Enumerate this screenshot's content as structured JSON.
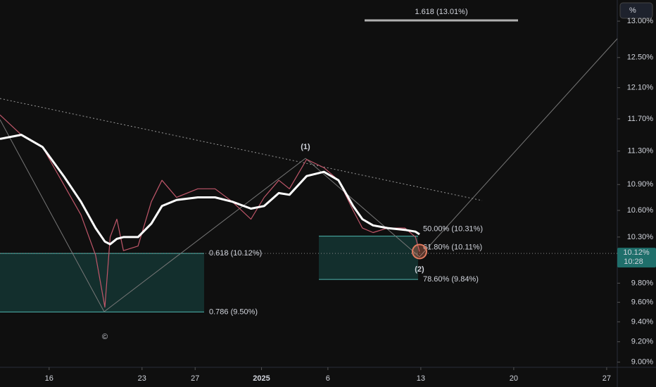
{
  "chart_data": {
    "type": "line",
    "log_scale": true,
    "x": [
      12.3,
      13.9,
      15.5,
      17.1,
      18.4,
      19.5,
      20.2,
      20.6,
      21.1,
      21.6,
      22.7,
      23.7,
      24.5,
      25.6,
      27.2,
      28.5,
      29.8,
      31.2,
      32.2,
      33.3,
      34.1,
      35.4,
      36.7,
      37.8,
      38.9,
      39.6,
      40.4,
      41.5,
      42.8,
      43.6,
      43.9
    ],
    "series": [
      {
        "color": "#c0576a",
        "values": [
          11.75,
          11.5,
          11.35,
          10.9,
          10.55,
          10.1,
          9.55,
          10.3,
          10.5,
          10.15,
          10.2,
          10.7,
          10.95,
          10.75,
          10.85,
          10.85,
          10.7,
          10.5,
          10.75,
          10.95,
          10.85,
          11.2,
          11.1,
          10.95,
          10.6,
          10.4,
          10.35,
          10.4,
          10.4,
          10.3,
          10.14
        ]
      },
      {
        "color": "#ffffff",
        "values": [
          11.45,
          11.5,
          11.35,
          11.0,
          10.7,
          10.4,
          10.25,
          10.22,
          10.28,
          10.3,
          10.3,
          10.45,
          10.65,
          10.72,
          10.75,
          10.75,
          10.7,
          10.62,
          10.65,
          10.8,
          10.78,
          11.0,
          11.05,
          10.95,
          10.65,
          10.5,
          10.43,
          10.4,
          10.38,
          10.36,
          10.33
        ]
      }
    ],
    "xlim": [
      12.3,
      58.8
    ],
    "ylim": [
      8.95,
      13.3
    ],
    "xticks": [
      16,
      23,
      27,
      {
        "value": 32,
        "label": "2025"
      },
      {
        "value": 37,
        "label": "6"
      },
      {
        "value": 44,
        "label": "13"
      },
      {
        "value": 51,
        "label": "20"
      },
      {
        "value": 58,
        "label": "27"
      }
    ],
    "yticks": [
      {
        "value": 13,
        "label": "13.00%"
      },
      {
        "value": 12.5,
        "label": "12.50%"
      },
      {
        "value": 12.1,
        "label": "12.10%"
      },
      {
        "value": 11.7,
        "label": "11.70%"
      },
      {
        "value": 11.3,
        "label": "11.30%"
      },
      {
        "value": 10.9,
        "label": "10.90%"
      },
      {
        "value": 10.6,
        "label": "10.60%"
      },
      {
        "value": 10.3,
        "label": "10.30%"
      },
      {
        "value": 9.8,
        "label": "9.80%"
      },
      {
        "value": 9.6,
        "label": "9.60%"
      },
      {
        "value": 9.4,
        "label": "9.40%"
      },
      {
        "value": 9.2,
        "label": "9.20%"
      },
      {
        "value": 9,
        "label": "9.00%"
      }
    ],
    "annotations": [
      {
        "text": "0.618 (10.12%)",
        "value": 10.12
      },
      {
        "text": "0.786 (9.50%)",
        "value": 9.5
      },
      {
        "text": "50.00% (10.31%)",
        "value": 10.31
      },
      {
        "text": "61.80% (10.11%)",
        "value": 10.11
      },
      {
        "text": "78.60% (9.84%)",
        "value": 9.84
      },
      {
        "text": "1.618 (13.01%)",
        "value": 13.01
      }
    ],
    "wave_labels": [
      "(1)",
      "(2)",
      "©"
    ],
    "last_price": {
      "label": "10.12%",
      "value": 10.12,
      "countdown": "10:28"
    },
    "scale_button": "%"
  }
}
